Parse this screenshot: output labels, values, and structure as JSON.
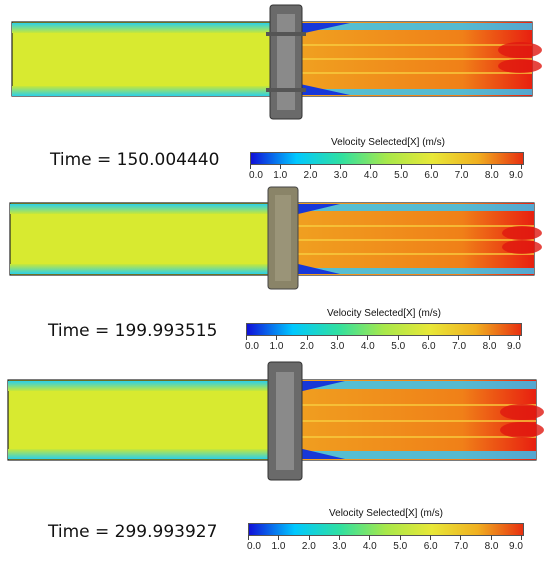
{
  "panels": [
    {
      "time_label": "Time = 150.004440"
    },
    {
      "time_label": "Time = 199.993515"
    },
    {
      "time_label": "Time = 299.993927"
    }
  ],
  "colorbar": {
    "title": "Velocity Selected[X] (m/s)",
    "min": 0.0,
    "max": 9.0,
    "ticks": [
      "0.0",
      "1.0",
      "2.0",
      "3.0",
      "4.0",
      "5.0",
      "6.0",
      "7.0",
      "8.0",
      "9.0"
    ],
    "colors": [
      "#1010d8",
      "#00c8ff",
      "#30e0a0",
      "#a8e84a",
      "#e8e838",
      "#f0b020",
      "#e83010"
    ]
  }
}
